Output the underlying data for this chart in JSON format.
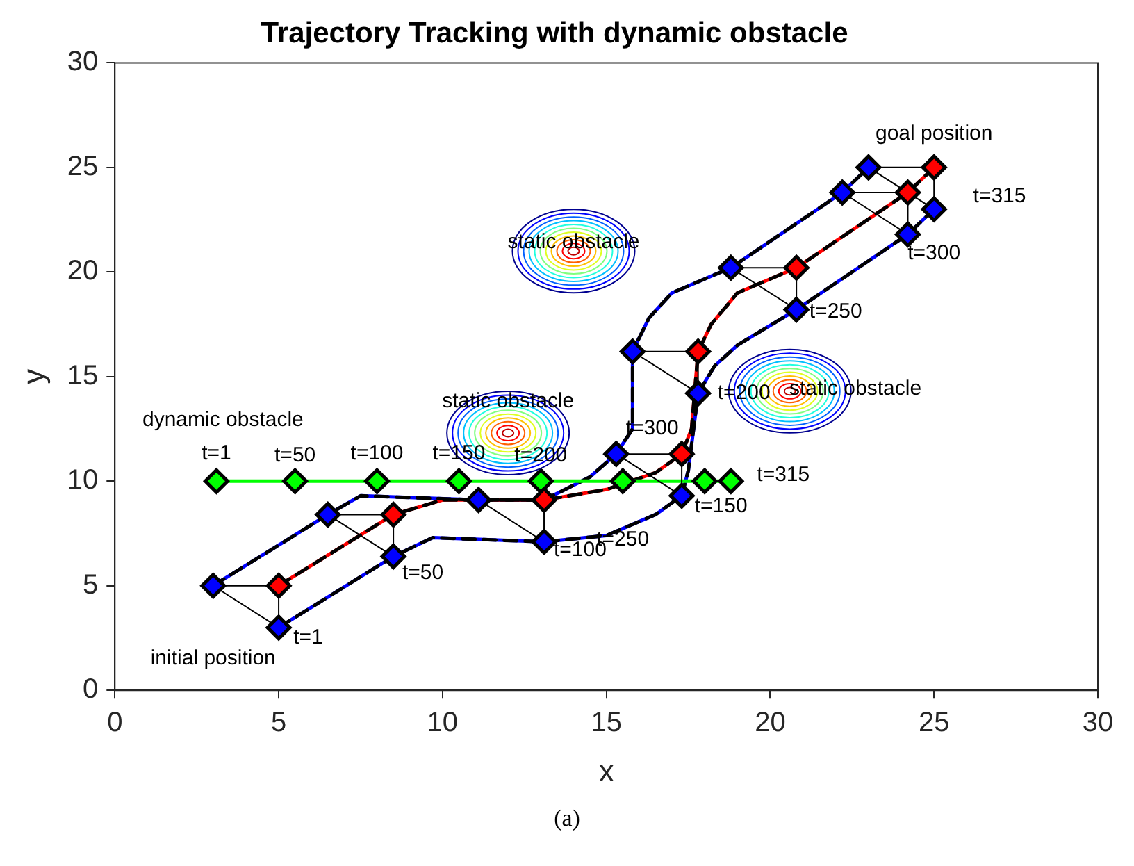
{
  "chart_data": {
    "type": "line",
    "title": "Trajectory Tracking with dynamic obstacle",
    "xlabel": "x",
    "ylabel": "y",
    "xlim": [
      0,
      30
    ],
    "ylim": [
      0,
      30
    ],
    "xticks": [
      0,
      5,
      10,
      15,
      20,
      25,
      30
    ],
    "yticks": [
      0,
      5,
      10,
      15,
      20,
      25,
      30
    ],
    "grid": false,
    "legend": false,
    "series": [
      {
        "type": "scatter",
        "marker": "circle",
        "color": "#ff0000",
        "x": [
          14,
          12,
          20.6
        ],
        "values": [
          21,
          12.3,
          14.3
        ]
      },
      {
        "type": "line",
        "marker": "none",
        "line_style": "solid",
        "color": "#0000ff",
        "x": [
          3,
          6.5,
          7.5,
          11.1,
          13.1,
          14.5,
          15.3,
          15.8,
          15.8,
          16.3,
          17,
          18.8,
          22.2,
          23
        ],
        "values": [
          5,
          8.4,
          9.3,
          9.1,
          9.1,
          10.2,
          11.3,
          12.5,
          16.2,
          17.8,
          19,
          20.2,
          23.8,
          25
        ]
      },
      {
        "type": "line",
        "marker": "none",
        "line_style": "solid",
        "color": "#ff0000",
        "x": [
          5,
          8.5,
          10,
          13.1,
          15,
          16.5,
          17.3,
          17.6,
          17.8,
          18.2,
          19,
          20.8,
          24.2,
          25
        ],
        "values": [
          5,
          8.4,
          9.1,
          9.1,
          9.6,
          10.4,
          11.3,
          12.5,
          16.2,
          17.5,
          19,
          20.2,
          23.8,
          25
        ]
      },
      {
        "type": "line",
        "marker": "none",
        "line_style": "solid",
        "color": "#0000ff",
        "x": [
          5,
          8.5,
          9.7,
          13.1,
          15,
          16.5,
          17.3,
          17.5,
          17.8,
          18.3,
          19,
          20.8,
          24.2,
          25
        ],
        "values": [
          3,
          6.4,
          7.3,
          7.1,
          7.4,
          8.4,
          9.3,
          10.5,
          14.2,
          15.5,
          16.5,
          18.2,
          21.8,
          23
        ]
      },
      {
        "type": "line",
        "marker": "none",
        "line_style": "dashed",
        "color": "#000000",
        "x": [
          3,
          6.5,
          7.5,
          11.1,
          13.1,
          14.5,
          15.3,
          15.8,
          15.8,
          16.3,
          17,
          18.8,
          22.2,
          23
        ],
        "values": [
          5,
          8.4,
          9.3,
          9.1,
          9.1,
          10.2,
          11.3,
          12.5,
          16.2,
          17.8,
          19,
          20.2,
          23.8,
          25
        ]
      },
      {
        "type": "line",
        "marker": "none",
        "line_style": "dashed",
        "color": "#000000",
        "x": [
          5,
          8.5,
          10,
          13.1,
          15,
          16.5,
          17.3,
          17.6,
          17.8,
          18.2,
          19,
          20.8,
          24.2,
          25
        ],
        "values": [
          5,
          8.4,
          9.1,
          9.1,
          9.6,
          10.4,
          11.3,
          12.5,
          16.2,
          17.5,
          19,
          20.2,
          23.8,
          25
        ]
      },
      {
        "type": "line",
        "marker": "none",
        "line_style": "dashed",
        "color": "#000000",
        "x": [
          5,
          8.5,
          9.7,
          13.1,
          15,
          16.5,
          17.3,
          17.5,
          17.8,
          18.3,
          19,
          20.8,
          24.2,
          25
        ],
        "values": [
          3,
          6.4,
          7.3,
          7.1,
          7.4,
          8.4,
          9.3,
          10.5,
          14.2,
          15.5,
          16.5,
          18.2,
          21.8,
          23
        ]
      },
      {
        "type": "line",
        "marker": "diamond",
        "line_style": "solid",
        "color": "#00ff00",
        "x": [
          3.1,
          5.5,
          8,
          10.5,
          13,
          15.5,
          18,
          18.8
        ],
        "values": [
          10,
          10,
          10,
          10,
          10,
          10,
          10,
          10
        ]
      },
      {
        "type": "line",
        "marker": "none",
        "line_style": "solid",
        "color": "#000000",
        "x": [
          3,
          5,
          5
        ],
        "values": [
          5,
          3,
          5
        ]
      },
      {
        "type": "line",
        "marker": "none",
        "line_style": "solid",
        "color": "#000000",
        "x": [
          3,
          5
        ],
        "values": [
          5,
          5
        ]
      },
      {
        "type": "line",
        "marker": "none",
        "line_style": "solid",
        "color": "#000000",
        "x": [
          6.5,
          8.5,
          8.5
        ],
        "values": [
          8.4,
          6.4,
          8.4
        ]
      },
      {
        "type": "line",
        "marker": "none",
        "line_style": "solid",
        "color": "#000000",
        "x": [
          6.5,
          8.5
        ],
        "values": [
          8.4,
          8.4
        ]
      },
      {
        "type": "line",
        "marker": "none",
        "line_style": "solid",
        "color": "#000000",
        "x": [
          11.1,
          13.1,
          13.1
        ],
        "values": [
          9.1,
          7.1,
          9.1
        ]
      },
      {
        "type": "line",
        "marker": "none",
        "line_style": "solid",
        "color": "#000000",
        "x": [
          15.3,
          17.3,
          17.3
        ],
        "values": [
          11.3,
          9.3,
          11.3
        ]
      },
      {
        "type": "line",
        "marker": "none",
        "line_style": "solid",
        "color": "#000000",
        "x": [
          15.3,
          17.3
        ],
        "values": [
          11.3,
          11.3
        ]
      },
      {
        "type": "line",
        "marker": "none",
        "line_style": "solid",
        "color": "#000000",
        "x": [
          15.8,
          17.8,
          17.8
        ],
        "values": [
          16.2,
          14.2,
          16.2
        ]
      },
      {
        "type": "line",
        "marker": "none",
        "line_style": "solid",
        "color": "#000000",
        "x": [
          15.8,
          17.8
        ],
        "values": [
          16.2,
          16.2
        ]
      },
      {
        "type": "line",
        "marker": "none",
        "line_style": "solid",
        "color": "#000000",
        "x": [
          18.8,
          20.8,
          20.8
        ],
        "values": [
          20.2,
          18.2,
          20.2
        ]
      },
      {
        "type": "line",
        "marker": "none",
        "line_style": "solid",
        "color": "#000000",
        "x": [
          18.8,
          20.8
        ],
        "values": [
          20.2,
          20.2
        ]
      },
      {
        "type": "line",
        "marker": "none",
        "line_style": "solid",
        "color": "#000000",
        "x": [
          22.2,
          24.2,
          24.2
        ],
        "values": [
          23.8,
          21.8,
          23.8
        ]
      },
      {
        "type": "line",
        "marker": "none",
        "line_style": "solid",
        "color": "#000000",
        "x": [
          22.2,
          24.2
        ],
        "values": [
          23.8,
          23.8
        ]
      },
      {
        "type": "line",
        "marker": "none",
        "line_style": "solid",
        "color": "#000000",
        "x": [
          23,
          25,
          25
        ],
        "values": [
          25,
          23,
          25
        ]
      },
      {
        "type": "line",
        "marker": "none",
        "line_style": "solid",
        "color": "#000000",
        "x": [
          23,
          25
        ],
        "values": [
          25,
          25
        ]
      },
      {
        "type": "scatter",
        "marker": "diamond",
        "color": "#0000ff",
        "x": [
          3,
          6.5,
          11.1,
          15.3,
          15.8,
          18.8,
          22.2,
          23
        ],
        "values": [
          5,
          8.4,
          9.1,
          11.3,
          16.2,
          20.2,
          23.8,
          25
        ]
      },
      {
        "type": "scatter",
        "marker": "diamond",
        "color": "#ff0000",
        "x": [
          5,
          8.5,
          13.1,
          17.3,
          17.8,
          20.8,
          24.2,
          25
        ],
        "values": [
          5,
          8.4,
          9.1,
          11.3,
          16.2,
          20.2,
          23.8,
          25
        ]
      },
      {
        "type": "scatter",
        "marker": "diamond",
        "color": "#0000ff",
        "x": [
          5,
          8.5,
          13.1,
          17.3,
          17.8,
          20.8,
          24.2,
          25
        ],
        "values": [
          3,
          6.4,
          7.1,
          9.3,
          14.2,
          18.2,
          21.8,
          23
        ]
      }
    ],
    "annotations": [
      "dynamic obstacle",
      "initial position",
      "goal position",
      "static obstacle",
      "static obstacle",
      "static obstacle",
      "t=1",
      "t=50",
      "t=100",
      "t=150",
      "t=200",
      "t=250",
      "t=300",
      "t=315",
      "t=1",
      "t=50",
      "t=100",
      "t=150",
      "t=200",
      "t=250",
      "t=300",
      "t=315",
      "(a)"
    ]
  }
}
